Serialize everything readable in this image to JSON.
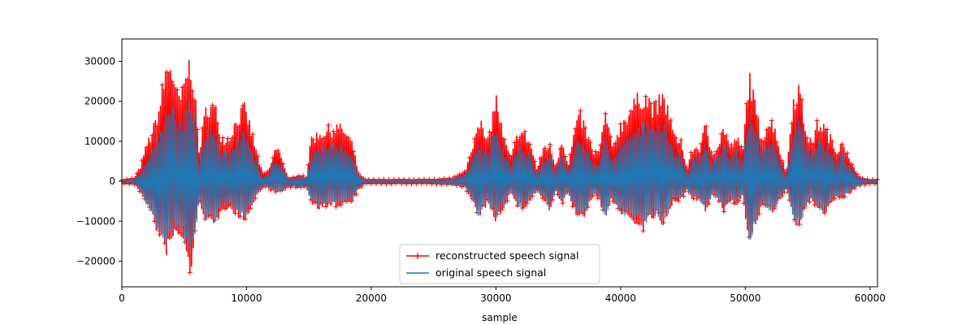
{
  "chart_data": {
    "type": "line",
    "title": "",
    "xlabel": "sample",
    "ylabel": "",
    "xlim": [
      0,
      60600
    ],
    "ylim": [
      -26400,
      35600
    ],
    "xticks": [
      {
        "value": 0,
        "label": "0"
      },
      {
        "value": 10000,
        "label": "10000"
      },
      {
        "value": 20000,
        "label": "20000"
      },
      {
        "value": 30000,
        "label": "30000"
      },
      {
        "value": 40000,
        "label": "40000"
      },
      {
        "value": 50000,
        "label": "50000"
      },
      {
        "value": 60000,
        "label": "60000"
      }
    ],
    "yticks": [
      {
        "value": -20000,
        "label": "−20000"
      },
      {
        "value": -10000,
        "label": "−10000"
      },
      {
        "value": 0,
        "label": "0"
      },
      {
        "value": 10000,
        "label": "10000"
      },
      {
        "value": 20000,
        "label": "20000"
      },
      {
        "value": 30000,
        "label": "30000"
      }
    ],
    "grid": false,
    "legend_position": "lower-center",
    "series": [
      {
        "name": "reconstructed speech signal",
        "color": "#ff0000",
        "marker": "+",
        "envelope": {
          "x": [
            0,
            1000,
            1500,
            2000,
            2500,
            3000,
            3500,
            3900,
            4300,
            4800,
            5200,
            5500,
            5800,
            6200,
            6800,
            7500,
            8000,
            8600,
            9200,
            9800,
            10300,
            10800,
            11300,
            11800,
            12300,
            12800,
            13300,
            13800,
            14300,
            14800,
            15200,
            15800,
            16500,
            17200,
            17800,
            18500,
            19000,
            19500,
            25000,
            26500,
            27500,
            28000,
            28600,
            29300,
            30000,
            30600,
            31200,
            31800,
            32300,
            32800,
            33300,
            33800,
            34300,
            34800,
            35300,
            35800,
            36300,
            36800,
            37300,
            37800,
            38300,
            38800,
            39300,
            39800,
            40300,
            40800,
            41300,
            41800,
            42300,
            42800,
            43300,
            43800,
            44300,
            44800,
            45300,
            45800,
            46300,
            46800,
            47300,
            47800,
            48300,
            48800,
            49300,
            49800,
            50300,
            50800,
            51300,
            51800,
            52300,
            52800,
            53300,
            53800,
            54300,
            54800,
            55300,
            55800,
            56300,
            56800,
            57300,
            57800,
            58300,
            58800,
            59300,
            59800,
            60600
          ],
          "upper": [
            500,
            800,
            4000,
            10000,
            14000,
            20000,
            30000,
            33000,
            24000,
            23000,
            30000,
            33000,
            26000,
            8000,
            21000,
            20000,
            12000,
            12000,
            17000,
            20000,
            15000,
            8000,
            2000,
            3000,
            9000,
            7000,
            1000,
            1000,
            2000,
            1000,
            12000,
            13000,
            14000,
            15000,
            14000,
            10000,
            2000,
            500,
            500,
            1000,
            2500,
            8000,
            18000,
            10000,
            23000,
            12000,
            6000,
            14000,
            13000,
            10000,
            3000,
            9000,
            10000,
            4000,
            12000,
            4000,
            14000,
            18000,
            13000,
            8000,
            8000,
            19000,
            9000,
            14000,
            17000,
            20000,
            22000,
            24000,
            22000,
            20000,
            23000,
            20000,
            12000,
            12000,
            3000,
            9000,
            9000,
            15000,
            8000,
            10000,
            15000,
            9000,
            12000,
            8000,
            30000,
            20000,
            12000,
            16000,
            16000,
            8000,
            2000,
            22000,
            26000,
            15000,
            10000,
            16000,
            15000,
            12000,
            8000,
            12000,
            6000,
            3000,
            1000,
            500,
            500
          ],
          "lower": [
            -700,
            -800,
            -3000,
            -6000,
            -10000,
            -15000,
            -19000,
            -17000,
            -14000,
            -15000,
            -21000,
            -24000,
            -18000,
            -5000,
            -11000,
            -12000,
            -7000,
            -7000,
            -9000,
            -10000,
            -8000,
            -4000,
            -1500,
            -2000,
            -3000,
            -3000,
            -1500,
            -1500,
            -2000,
            -1500,
            -6000,
            -7000,
            -7000,
            -6500,
            -6000,
            -5000,
            -2000,
            -700,
            -700,
            -1000,
            -1500,
            -5000,
            -9500,
            -6000,
            -10500,
            -7000,
            -3000,
            -7000,
            -7000,
            -5000,
            -2500,
            -5000,
            -8000,
            -3000,
            -6000,
            -3000,
            -8000,
            -10500,
            -8000,
            -3500,
            -5000,
            -10000,
            -4500,
            -8000,
            -9000,
            -10000,
            -11000,
            -13000,
            -10000,
            -9000,
            -12000,
            -9000,
            -5000,
            -5000,
            -2500,
            -5000,
            -5000,
            -8000,
            -4000,
            -5000,
            -8000,
            -5000,
            -6000,
            -4000,
            -17000,
            -12000,
            -6000,
            -8000,
            -8000,
            -5000,
            -2000,
            -10000,
            -12000,
            -8000,
            -5000,
            -7000,
            -9000,
            -6000,
            -4000,
            -5000,
            -3000,
            -2000,
            -1000,
            -700,
            -700
          ]
        }
      },
      {
        "name": "original speech signal",
        "color": "#1f77b4",
        "marker": "none",
        "envelope": {
          "x": [
            0,
            1000,
            1500,
            2000,
            2500,
            3000,
            3500,
            3900,
            4300,
            4800,
            5200,
            5500,
            5800,
            6200,
            6800,
            7500,
            8000,
            8600,
            9200,
            9800,
            10300,
            10800,
            11300,
            11800,
            12300,
            12800,
            13300,
            13800,
            14300,
            14800,
            15200,
            15800,
            16500,
            17200,
            17800,
            18500,
            19000,
            19500,
            25000,
            26500,
            27500,
            28000,
            28600,
            29300,
            30000,
            30600,
            31200,
            31800,
            32300,
            32800,
            33300,
            33800,
            34300,
            34800,
            35300,
            35800,
            36300,
            36800,
            37300,
            37800,
            38300,
            38800,
            39300,
            39800,
            40300,
            40800,
            41300,
            41800,
            42300,
            42800,
            43300,
            43800,
            44300,
            44800,
            45300,
            45800,
            46300,
            46800,
            47300,
            47800,
            48300,
            48800,
            49300,
            49800,
            50300,
            50800,
            51300,
            51800,
            52300,
            52800,
            53300,
            53800,
            54300,
            54800,
            55300,
            55800,
            56300,
            56800,
            57300,
            57800,
            58300,
            58800,
            59300,
            59800,
            60600
          ],
          "upper": [
            200,
            500,
            2500,
            6000,
            9000,
            13000,
            19000,
            22000,
            17000,
            16000,
            20000,
            22000,
            17000,
            5000,
            14000,
            13000,
            8000,
            8000,
            11000,
            13000,
            10000,
            5000,
            1000,
            2000,
            6000,
            5000,
            700,
            700,
            1500,
            700,
            8000,
            9000,
            9500,
            10000,
            9500,
            7000,
            1500,
            300,
            300,
            700,
            1800,
            5000,
            11000,
            7000,
            15000,
            8000,
            4000,
            9000,
            8500,
            6500,
            2000,
            6000,
            7000,
            3000,
            8000,
            3000,
            9000,
            11500,
            8500,
            5000,
            5000,
            12500,
            6000,
            9000,
            11000,
            13000,
            14000,
            16000,
            15000,
            13000,
            15000,
            13000,
            8000,
            8000,
            2000,
            6000,
            6000,
            10000,
            5000,
            7000,
            10000,
            6000,
            8000,
            5000,
            19000,
            13000,
            8000,
            10500,
            10500,
            5000,
            1500,
            14000,
            17000,
            10000,
            7000,
            10500,
            10000,
            8000,
            5000,
            8000,
            4000,
            2000,
            700,
            300,
            300
          ],
          "lower": [
            -300,
            -600,
            -2800,
            -6000,
            -9500,
            -14000,
            -17000,
            -15000,
            -12000,
            -13000,
            -18000,
            -20000,
            -16000,
            -4500,
            -10000,
            -11000,
            -6500,
            -6500,
            -8500,
            -9500,
            -7500,
            -3500,
            -1200,
            -1800,
            -2800,
            -2800,
            -1200,
            -1200,
            -1800,
            -1200,
            -5500,
            -6500,
            -6500,
            -6000,
            -5500,
            -4500,
            -1800,
            -400,
            -400,
            -900,
            -1200,
            -4500,
            -9000,
            -5500,
            -10000,
            -6500,
            -2800,
            -6500,
            -6500,
            -4500,
            -2200,
            -4500,
            -7500,
            -2800,
            -5500,
            -2800,
            -7500,
            -10000,
            -7500,
            -3200,
            -4500,
            -9500,
            -4200,
            -7500,
            -8500,
            -9500,
            -10500,
            -12000,
            -9500,
            -8500,
            -11000,
            -8500,
            -4500,
            -4500,
            -2200,
            -4500,
            -4500,
            -7500,
            -3800,
            -4500,
            -7500,
            -4500,
            -5500,
            -3800,
            -16500,
            -11500,
            -5500,
            -7500,
            -7500,
            -4500,
            -1800,
            -9500,
            -11500,
            -7500,
            -4500,
            -6500,
            -8500,
            -5500,
            -3800,
            -4500,
            -2800,
            -1800,
            -900,
            -400,
            -400
          ]
        }
      }
    ]
  }
}
